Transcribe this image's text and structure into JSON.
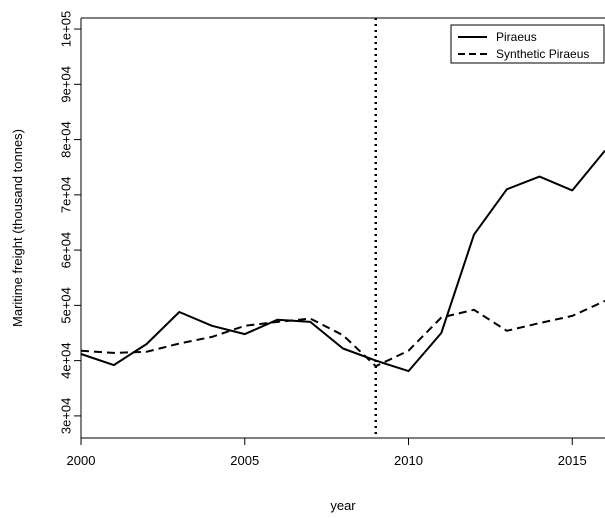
{
  "chart_data": {
    "type": "line",
    "title": "",
    "xlabel": "year",
    "ylabel": "Maritime freight (thousand tonnes)",
    "xlim": [
      2000,
      2016
    ],
    "ylim": [
      26000,
      102000
    ],
    "x_ticks": [
      2000,
      2005,
      2010,
      2015
    ],
    "x_tick_labels": [
      "2000",
      "2005",
      "2010",
      "2015"
    ],
    "y_ticks": [
      30000,
      40000,
      50000,
      60000,
      70000,
      80000,
      90000,
      100000
    ],
    "y_tick_labels": [
      "3e+04",
      "4e+04",
      "5e+04",
      "6e+04",
      "7e+04",
      "8e+04",
      "9e+04",
      "1e+05"
    ],
    "vline": 2009,
    "grid": false,
    "legend_position": "top-right",
    "x": [
      2000,
      2001,
      2002,
      2003,
      2004,
      2005,
      2006,
      2007,
      2008,
      2009,
      2010,
      2011,
      2012,
      2013,
      2014,
      2015,
      2016
    ],
    "series": [
      {
        "name": "Piraeus",
        "style": "solid",
        "color": "#000000",
        "values": [
          41200,
          39200,
          43000,
          48800,
          46300,
          44800,
          47400,
          47000,
          42200,
          40000,
          38100,
          45000,
          62800,
          71000,
          73300,
          70800,
          78000
        ]
      },
      {
        "name": "Synthetic Piraeus",
        "style": "dashed",
        "color": "#000000",
        "values": [
          41800,
          41400,
          41600,
          43100,
          44300,
          46300,
          47000,
          47600,
          44600,
          39000,
          41800,
          47800,
          49200,
          45400,
          46800,
          48100,
          50800
        ]
      }
    ]
  }
}
